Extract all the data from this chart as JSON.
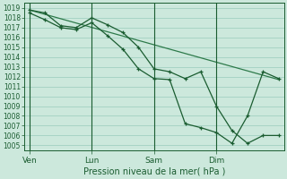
{
  "background_color": "#cce8dc",
  "grid_color": "#99ccbb",
  "line_color_dark": "#1a5c30",
  "line_color_mid": "#2d7a4a",
  "xlabel": "Pression niveau de la mer( hPa )",
  "ylim": [
    1004.5,
    1019.5
  ],
  "ytick_min": 1005,
  "ytick_max": 1019,
  "day_labels": [
    "Ven",
    "Lun",
    "Sam",
    "Dim"
  ],
  "day_positions": [
    0,
    24,
    48,
    72
  ],
  "xmax": 96,
  "series_smooth": {
    "x": [
      0,
      96
    ],
    "y": [
      1018.8,
      1011.7
    ]
  },
  "series_jagged1": {
    "x": [
      0,
      6,
      12,
      18,
      24,
      30,
      36,
      42,
      48,
      54,
      60,
      66,
      72,
      78,
      84,
      90,
      96
    ],
    "y": [
      1018.8,
      1018.5,
      1017.2,
      1017.0,
      1018.0,
      1017.3,
      1016.5,
      1015.0,
      1012.8,
      1012.5,
      1011.8,
      1012.5,
      1009.0,
      1006.5,
      1005.2,
      1006.0,
      1006.0
    ]
  },
  "series_jagged2": {
    "x": [
      0,
      6,
      12,
      18,
      24,
      30,
      36,
      42,
      48,
      54,
      60,
      66,
      72,
      78,
      84,
      90,
      96
    ],
    "y": [
      1018.5,
      1017.8,
      1017.0,
      1016.8,
      1017.5,
      1016.2,
      1014.8,
      1012.8,
      1011.8,
      1011.7,
      1007.2,
      1006.8,
      1006.3,
      1005.2,
      1008.0,
      1012.5,
      1011.8
    ]
  }
}
